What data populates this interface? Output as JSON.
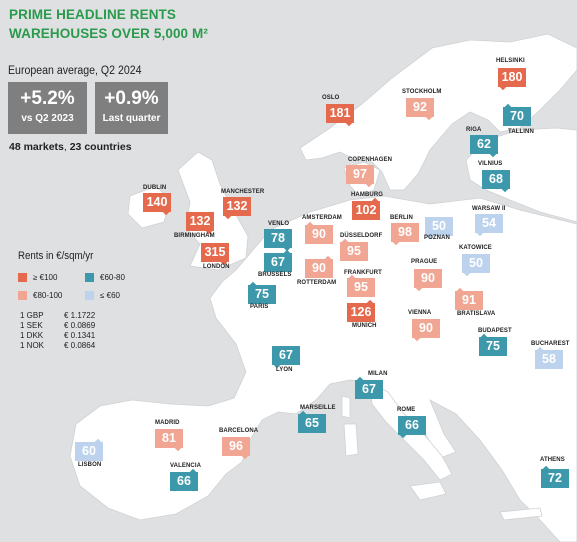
{
  "title": {
    "line1": "PRIME HEADLINE RENTS",
    "line2": "WAREHOUSES OVER 5,000 M²"
  },
  "average": {
    "label": "European average, Q2 2024",
    "yoy": {
      "value": "+5.2%",
      "label": "vs Q2 2023"
    },
    "qoq": {
      "value": "+0.9%",
      "label": "Last quarter"
    }
  },
  "coverage": {
    "markets": "48 markets",
    "countries": "23 countries"
  },
  "legend": {
    "title": "Rents in €/sqm/yr",
    "bands": [
      {
        "label": "≥ €100",
        "color": "#e56a4d"
      },
      {
        "label": "€60-80",
        "color": "#3e98ab"
      },
      {
        "label": "€80-100",
        "color": "#f0a693"
      },
      {
        "label": "≤ €60",
        "color": "#bdd2ec"
      }
    ]
  },
  "fx": [
    {
      "currency": "1 GBP",
      "rate": "€ 1.1722"
    },
    {
      "currency": "1 SEK",
      "rate": "€ 0.0869"
    },
    {
      "currency": "1 DKK",
      "rate": "€ 0.1341"
    },
    {
      "currency": "1 NOK",
      "rate": "€ 0.0864"
    }
  ],
  "markets": [
    {
      "city": "HELSINKI",
      "rent": "180",
      "band": "c1"
    },
    {
      "city": "OSLO",
      "rent": "181",
      "band": "c1"
    },
    {
      "city": "STOCKHOLM",
      "rent": "92",
      "band": "c2"
    },
    {
      "city": "TALLINN",
      "rent": "70",
      "band": "c3"
    },
    {
      "city": "RIGA",
      "rent": "62",
      "band": "c3"
    },
    {
      "city": "VILNIUS",
      "rent": "68",
      "band": "c3"
    },
    {
      "city": "COPENHAGEN",
      "rent": "97",
      "band": "c2"
    },
    {
      "city": "DUBLIN",
      "rent": "140",
      "band": "c1"
    },
    {
      "city": "MANCHESTER",
      "rent": "132",
      "band": "c1"
    },
    {
      "city": "BIRMINGHAM",
      "rent": "132",
      "band": "c1"
    },
    {
      "city": "LONDON",
      "rent": "315",
      "band": "c1"
    },
    {
      "city": "HAMBURG",
      "rent": "102",
      "band": "c1"
    },
    {
      "city": "VENLO",
      "rent": "78",
      "band": "c3"
    },
    {
      "city": "AMSTERDAM",
      "rent": "90",
      "band": "c2"
    },
    {
      "city": "DÜSSELDORF",
      "rent": "95",
      "band": "c2"
    },
    {
      "city": "BRUSSELS",
      "rent": "67",
      "band": "c3"
    },
    {
      "city": "ROTTERDAM",
      "rent": "90",
      "band": "c2"
    },
    {
      "city": "BERLIN",
      "rent": "98",
      "band": "c2"
    },
    {
      "city": "POZNAN",
      "rent": "50",
      "band": "c4"
    },
    {
      "city": "WARSAW II",
      "rent": "54",
      "band": "c4"
    },
    {
      "city": "KATOWICE",
      "rent": "50",
      "band": "c4"
    },
    {
      "city": "FRANKFURT",
      "rent": "95",
      "band": "c2"
    },
    {
      "city": "PRAGUE",
      "rent": "90",
      "band": "c2"
    },
    {
      "city": "PARIS",
      "rent": "75",
      "band": "c3"
    },
    {
      "city": "MUNICH",
      "rent": "126",
      "band": "c1"
    },
    {
      "city": "VIENNA",
      "rent": "90",
      "band": "c2"
    },
    {
      "city": "BRATISLAVA",
      "rent": "91",
      "band": "c2"
    },
    {
      "city": "BUDAPEST",
      "rent": "75",
      "band": "c3"
    },
    {
      "city": "BUCHAREST",
      "rent": "58",
      "band": "c4"
    },
    {
      "city": "LYON",
      "rent": "67",
      "band": "c3"
    },
    {
      "city": "MILAN",
      "rent": "67",
      "band": "c3"
    },
    {
      "city": "MARSEILLE",
      "rent": "65",
      "band": "c3"
    },
    {
      "city": "ROME",
      "rent": "66",
      "band": "c3"
    },
    {
      "city": "MADRID",
      "rent": "81",
      "band": "c2"
    },
    {
      "city": "BARCELONA",
      "rent": "96",
      "band": "c2"
    },
    {
      "city": "LISBON",
      "rent": "60",
      "band": "c4"
    },
    {
      "city": "VALENCIA",
      "rent": "66",
      "band": "c3"
    },
    {
      "city": "ATHENS",
      "rent": "72",
      "band": "c3"
    }
  ]
}
